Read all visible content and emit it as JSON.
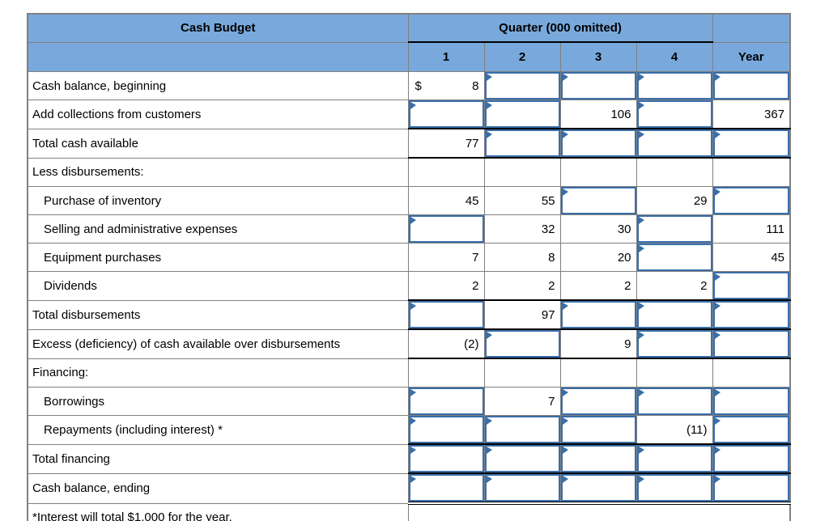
{
  "title": "Cash Budget",
  "quarter_header": "Quarter (000 omitted)",
  "col_headers": [
    "1",
    "2",
    "3",
    "4",
    "Year"
  ],
  "colors": {
    "header_blue": "#79a9dc",
    "input_border_blue": "#3a6ea9",
    "grid_gray": "#808080",
    "rule_black": "#000000"
  },
  "rows": [
    {
      "label": "Cash balance, beginning",
      "cells": [
        {
          "type": "static",
          "prefix": "$",
          "value": "8"
        },
        {
          "type": "input"
        },
        {
          "type": "input"
        },
        {
          "type": "input"
        },
        {
          "type": "input"
        }
      ]
    },
    {
      "label": "Add collections from customers",
      "cells": [
        {
          "type": "input"
        },
        {
          "type": "input"
        },
        {
          "type": "static",
          "value": "106"
        },
        {
          "type": "input"
        },
        {
          "type": "static",
          "value": "367"
        }
      ]
    },
    {
      "label": "Total cash available",
      "rule": "tb",
      "cells": [
        {
          "type": "static",
          "value": "77"
        },
        {
          "type": "input"
        },
        {
          "type": "input"
        },
        {
          "type": "input"
        },
        {
          "type": "input"
        }
      ]
    },
    {
      "label": "Less disbursements:",
      "cells": [
        {
          "type": "empty"
        },
        {
          "type": "empty"
        },
        {
          "type": "empty"
        },
        {
          "type": "empty"
        },
        {
          "type": "empty"
        }
      ]
    },
    {
      "label": "Purchase of inventory",
      "indent": true,
      "cells": [
        {
          "type": "static",
          "value": "45"
        },
        {
          "type": "static",
          "value": "55"
        },
        {
          "type": "input"
        },
        {
          "type": "static",
          "value": "29"
        },
        {
          "type": "input"
        }
      ]
    },
    {
      "label": "Selling and administrative expenses",
      "indent": true,
      "cells": [
        {
          "type": "input"
        },
        {
          "type": "static",
          "value": "32"
        },
        {
          "type": "static",
          "value": "30"
        },
        {
          "type": "input"
        },
        {
          "type": "static",
          "value": "111"
        }
      ]
    },
    {
      "label": "Equipment purchases",
      "indent": true,
      "cells": [
        {
          "type": "static",
          "value": "7"
        },
        {
          "type": "static",
          "value": "8"
        },
        {
          "type": "static",
          "value": "20"
        },
        {
          "type": "input"
        },
        {
          "type": "static",
          "value": "45"
        }
      ]
    },
    {
      "label": "Dividends",
      "indent": true,
      "cells": [
        {
          "type": "static",
          "value": "2"
        },
        {
          "type": "static",
          "value": "2"
        },
        {
          "type": "static",
          "value": "2"
        },
        {
          "type": "static",
          "value": "2"
        },
        {
          "type": "input"
        }
      ]
    },
    {
      "label": "Total disbursements",
      "rule": "tb",
      "cells": [
        {
          "type": "input"
        },
        {
          "type": "static",
          "value": "97"
        },
        {
          "type": "input"
        },
        {
          "type": "input"
        },
        {
          "type": "input"
        }
      ]
    },
    {
      "label": "Excess (deficiency) of cash available over disbursements",
      "rule": "tb",
      "cells": [
        {
          "type": "static",
          "value": "(2)"
        },
        {
          "type": "input"
        },
        {
          "type": "static",
          "value": "9"
        },
        {
          "type": "input"
        },
        {
          "type": "input"
        }
      ]
    },
    {
      "label": "Financing:",
      "cells": [
        {
          "type": "empty"
        },
        {
          "type": "empty"
        },
        {
          "type": "empty"
        },
        {
          "type": "empty"
        },
        {
          "type": "empty"
        }
      ]
    },
    {
      "label": "Borrowings",
      "indent": true,
      "cells": [
        {
          "type": "input"
        },
        {
          "type": "static",
          "value": "7"
        },
        {
          "type": "input"
        },
        {
          "type": "input"
        },
        {
          "type": "input"
        }
      ]
    },
    {
      "label": "Repayments (including interest) *",
      "indent": true,
      "cells": [
        {
          "type": "input"
        },
        {
          "type": "input"
        },
        {
          "type": "input"
        },
        {
          "type": "static",
          "value": "(11)"
        },
        {
          "type": "input"
        }
      ]
    },
    {
      "label": "Total financing",
      "rule": "tb",
      "cells": [
        {
          "type": "input"
        },
        {
          "type": "input"
        },
        {
          "type": "input"
        },
        {
          "type": "input"
        },
        {
          "type": "input"
        }
      ]
    },
    {
      "label": "Cash balance, ending",
      "rule": "tdb",
      "cells": [
        {
          "type": "input"
        },
        {
          "type": "input"
        },
        {
          "type": "input"
        },
        {
          "type": "input"
        },
        {
          "type": "input"
        }
      ]
    },
    {
      "label": "*Interest will total $1,000 for the year.",
      "footnote": true,
      "merged": true
    }
  ]
}
